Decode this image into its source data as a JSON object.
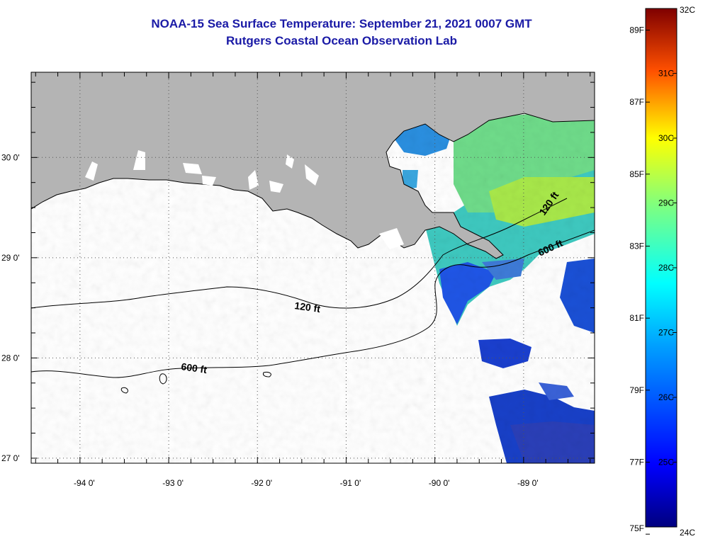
{
  "title": {
    "line1": "NOAA-15 Sea Surface Temperature:  September 21, 2021 0007 GMT",
    "line2": "Rutgers Coastal Ocean Observation Lab"
  },
  "map": {
    "lon_range": [
      -94.55,
      -88.2
    ],
    "lat_range": [
      26.95,
      30.85
    ],
    "lon_ticks": [
      {
        "value": -94,
        "label": "-94 0'"
      },
      {
        "value": -93,
        "label": "-93 0'"
      },
      {
        "value": -92,
        "label": "-92 0'"
      },
      {
        "value": -91,
        "label": "-91 0'"
      },
      {
        "value": -90,
        "label": "-90 0'"
      },
      {
        "value": -89,
        "label": "-89 0'"
      }
    ],
    "lat_ticks": [
      {
        "value": 30,
        "label": "30 0'"
      },
      {
        "value": 29,
        "label": "29 0'"
      },
      {
        "value": 28,
        "label": "28 0'"
      },
      {
        "value": 27,
        "label": "27 0'"
      }
    ],
    "contours": [
      {
        "label": "120 ft"
      },
      {
        "label": "600 ft"
      }
    ],
    "contour_labels": [
      "120 ft",
      "600 ft",
      "120 ft",
      "600 ft"
    ],
    "land_color": "#b4b4b4",
    "colors": {
      "ocean": "#ffffff",
      "grid": "#555555"
    }
  },
  "colorbar": {
    "range_c": [
      24,
      32
    ],
    "celsius_labels": [
      "32C",
      "31C",
      "30C",
      "29C",
      "28C",
      "27C",
      "26C",
      "25C",
      "24C"
    ],
    "fahrenheit_labels": [
      "89F",
      "87F",
      "85F",
      "83F",
      "81F",
      "79F",
      "77F",
      "75F"
    ]
  }
}
